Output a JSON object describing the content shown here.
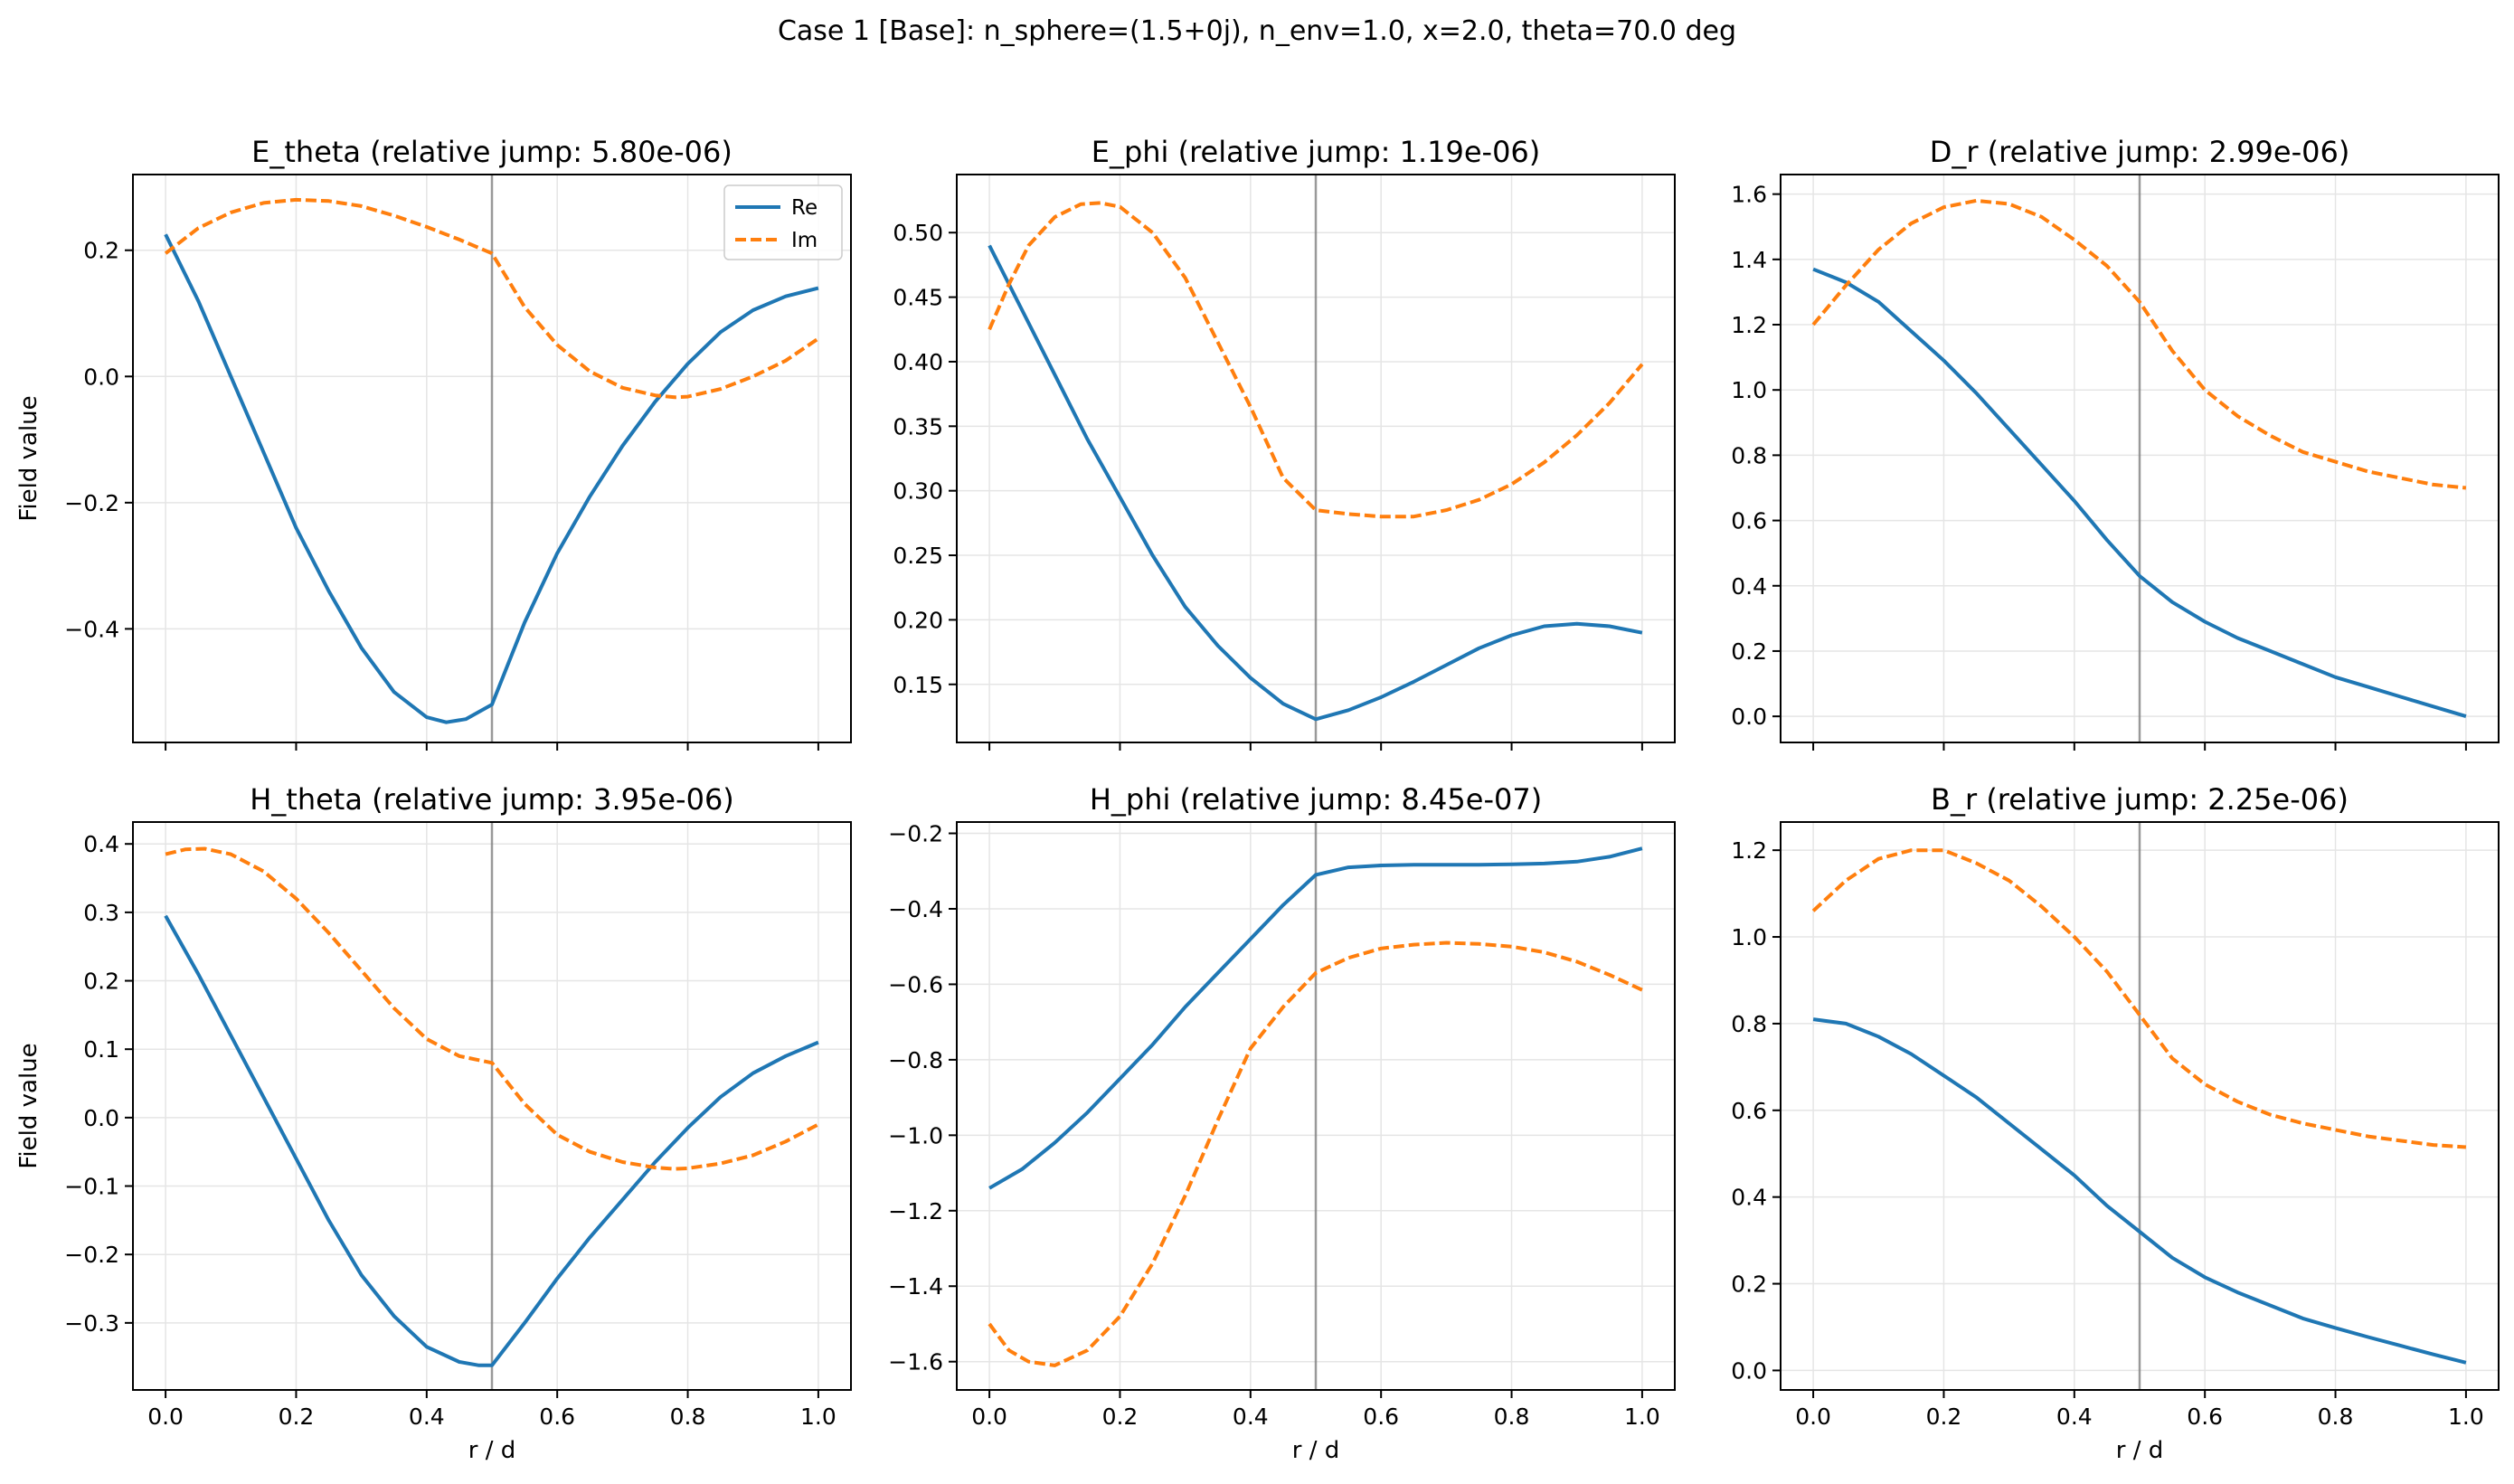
{
  "figure": {
    "suptitle": "Case 1 [Base]: n_sphere=(1.5+0j), n_env=1.0, x=2.0, theta=70.0 deg"
  },
  "legend": {
    "re_label": "Re",
    "im_label": "Im"
  },
  "colors": {
    "re": "#1f77b4",
    "im": "#ff7f0e",
    "interface": "#808080",
    "grid": "#e5e5e5",
    "axes": "#000000"
  },
  "chart_data": [
    {
      "type": "line",
      "title": "E_theta (relative jump: 5.80e-06)",
      "xlabel": "",
      "ylabel": "Field value",
      "xlim": [
        -0.05,
        1.05
      ],
      "ylim": [
        -0.58,
        0.32
      ],
      "xticks": [
        0.0,
        0.2,
        0.4,
        0.6,
        0.8,
        1.0
      ],
      "show_xticklabels": false,
      "yticks": [
        -0.4,
        -0.2,
        0.0,
        0.2
      ],
      "ytick_labels": [
        "−0.4",
        "−0.2",
        "0.0",
        "0.2"
      ],
      "interface_x": 0.5,
      "legend": "upper right",
      "series": [
        {
          "name": "Re",
          "x": [
            0,
            0.05,
            0.1,
            0.15,
            0.2,
            0.25,
            0.3,
            0.35,
            0.4,
            0.43,
            0.46,
            0.5,
            0.55,
            0.6,
            0.65,
            0.7,
            0.75,
            0.8,
            0.85,
            0.9,
            0.95,
            1.0
          ],
          "y": [
            0.225,
            0.12,
            0.0,
            -0.12,
            -0.24,
            -0.34,
            -0.43,
            -0.5,
            -0.54,
            -0.548,
            -0.543,
            -0.52,
            -0.39,
            -0.28,
            -0.19,
            -0.11,
            -0.04,
            0.02,
            0.07,
            0.105,
            0.127,
            0.14
          ]
        },
        {
          "name": "Im",
          "x": [
            0,
            0.05,
            0.1,
            0.15,
            0.2,
            0.25,
            0.3,
            0.35,
            0.4,
            0.45,
            0.5,
            0.55,
            0.6,
            0.65,
            0.7,
            0.75,
            0.78,
            0.8,
            0.85,
            0.9,
            0.95,
            1.0
          ],
          "y": [
            0.195,
            0.235,
            0.26,
            0.275,
            0.28,
            0.278,
            0.27,
            0.255,
            0.237,
            0.217,
            0.195,
            0.11,
            0.05,
            0.008,
            -0.018,
            -0.03,
            -0.033,
            -0.032,
            -0.02,
            0.0,
            0.025,
            0.06
          ]
        }
      ]
    },
    {
      "type": "line",
      "title": "E_phi (relative jump: 1.19e-06)",
      "xlabel": "",
      "ylabel": "",
      "xlim": [
        -0.05,
        1.05
      ],
      "ylim": [
        0.105,
        0.545
      ],
      "xticks": [
        0.0,
        0.2,
        0.4,
        0.6,
        0.8,
        1.0
      ],
      "show_xticklabels": false,
      "yticks": [
        0.15,
        0.2,
        0.25,
        0.3,
        0.35,
        0.4,
        0.45,
        0.5
      ],
      "ytick_labels": [
        "0.15",
        "0.20",
        "0.25",
        "0.30",
        "0.35",
        "0.40",
        "0.45",
        "0.50"
      ],
      "interface_x": 0.5,
      "series": [
        {
          "name": "Re",
          "x": [
            0,
            0.05,
            0.1,
            0.15,
            0.2,
            0.25,
            0.3,
            0.35,
            0.4,
            0.45,
            0.5,
            0.55,
            0.6,
            0.65,
            0.7,
            0.75,
            0.8,
            0.85,
            0.9,
            0.95,
            1.0
          ],
          "y": [
            0.49,
            0.44,
            0.39,
            0.34,
            0.295,
            0.25,
            0.21,
            0.18,
            0.155,
            0.135,
            0.123,
            0.13,
            0.14,
            0.152,
            0.165,
            0.178,
            0.188,
            0.195,
            0.197,
            0.195,
            0.19
          ]
        },
        {
          "name": "Im",
          "x": [
            0,
            0.03,
            0.06,
            0.1,
            0.14,
            0.17,
            0.2,
            0.25,
            0.3,
            0.35,
            0.4,
            0.45,
            0.5,
            0.55,
            0.6,
            0.65,
            0.7,
            0.75,
            0.8,
            0.85,
            0.9,
            0.95,
            1.0
          ],
          "y": [
            0.425,
            0.46,
            0.49,
            0.512,
            0.522,
            0.523,
            0.52,
            0.5,
            0.465,
            0.415,
            0.365,
            0.31,
            0.285,
            0.282,
            0.28,
            0.28,
            0.285,
            0.293,
            0.305,
            0.322,
            0.343,
            0.368,
            0.398
          ]
        }
      ]
    },
    {
      "type": "line",
      "title": "D_r (relative jump: 2.99e-06)",
      "xlabel": "",
      "ylabel": "",
      "xlim": [
        -0.05,
        1.05
      ],
      "ylim": [
        -0.08,
        1.66
      ],
      "xticks": [
        0.0,
        0.2,
        0.4,
        0.6,
        0.8,
        1.0
      ],
      "show_xticklabels": false,
      "yticks": [
        0.0,
        0.2,
        0.4,
        0.6,
        0.8,
        1.0,
        1.2,
        1.4,
        1.6
      ],
      "ytick_labels": [
        "0.0",
        "0.2",
        "0.4",
        "0.6",
        "0.8",
        "1.0",
        "1.2",
        "1.4",
        "1.6"
      ],
      "interface_x": 0.5,
      "series": [
        {
          "name": "Re",
          "x": [
            0,
            0.05,
            0.1,
            0.15,
            0.2,
            0.25,
            0.3,
            0.35,
            0.4,
            0.45,
            0.5,
            0.55,
            0.6,
            0.65,
            0.7,
            0.75,
            0.8,
            0.85,
            0.9,
            0.95,
            1.0
          ],
          "y": [
            1.37,
            1.33,
            1.27,
            1.18,
            1.09,
            0.99,
            0.88,
            0.77,
            0.66,
            0.54,
            0.43,
            0.35,
            0.29,
            0.24,
            0.2,
            0.16,
            0.12,
            0.09,
            0.06,
            0.03,
            0.0
          ]
        },
        {
          "name": "Im",
          "x": [
            0,
            0.05,
            0.1,
            0.15,
            0.2,
            0.25,
            0.3,
            0.35,
            0.4,
            0.45,
            0.5,
            0.55,
            0.6,
            0.65,
            0.7,
            0.75,
            0.8,
            0.85,
            0.9,
            0.95,
            1.0
          ],
          "y": [
            1.2,
            1.32,
            1.43,
            1.51,
            1.56,
            1.58,
            1.57,
            1.53,
            1.46,
            1.38,
            1.27,
            1.12,
            1.0,
            0.92,
            0.86,
            0.81,
            0.78,
            0.75,
            0.73,
            0.71,
            0.7
          ]
        }
      ]
    },
    {
      "type": "line",
      "title": "H_theta (relative jump: 3.95e-06)",
      "xlabel": "r / d",
      "ylabel": "Field value",
      "xlim": [
        -0.05,
        1.05
      ],
      "ylim": [
        -0.398,
        0.432
      ],
      "xticks": [
        0.0,
        0.2,
        0.4,
        0.6,
        0.8,
        1.0
      ],
      "show_xticklabels": true,
      "xtick_labels": [
        "0.0",
        "0.2",
        "0.4",
        "0.6",
        "0.8",
        "1.0"
      ],
      "yticks": [
        -0.3,
        -0.2,
        -0.1,
        0.0,
        0.1,
        0.2,
        0.3,
        0.4
      ],
      "ytick_labels": [
        "−0.3",
        "−0.2",
        "−0.1",
        "0.0",
        "0.1",
        "0.2",
        "0.3",
        "0.4"
      ],
      "interface_x": 0.5,
      "series": [
        {
          "name": "Re",
          "x": [
            0,
            0.05,
            0.1,
            0.15,
            0.2,
            0.25,
            0.3,
            0.35,
            0.4,
            0.45,
            0.48,
            0.5,
            0.55,
            0.6,
            0.65,
            0.7,
            0.75,
            0.8,
            0.85,
            0.9,
            0.95,
            1.0
          ],
          "y": [
            0.295,
            0.21,
            0.12,
            0.03,
            -0.06,
            -0.15,
            -0.23,
            -0.29,
            -0.335,
            -0.357,
            -0.362,
            -0.362,
            -0.3,
            -0.235,
            -0.175,
            -0.12,
            -0.065,
            -0.015,
            0.03,
            0.065,
            0.09,
            0.11
          ]
        },
        {
          "name": "Im",
          "x": [
            0,
            0.03,
            0.06,
            0.1,
            0.15,
            0.2,
            0.25,
            0.3,
            0.35,
            0.4,
            0.45,
            0.5,
            0.55,
            0.6,
            0.65,
            0.7,
            0.75,
            0.78,
            0.8,
            0.85,
            0.9,
            0.95,
            1.0
          ],
          "y": [
            0.385,
            0.392,
            0.393,
            0.385,
            0.36,
            0.32,
            0.27,
            0.215,
            0.16,
            0.115,
            0.09,
            0.08,
            0.02,
            -0.025,
            -0.05,
            -0.065,
            -0.073,
            -0.075,
            -0.074,
            -0.067,
            -0.055,
            -0.035,
            -0.01
          ]
        }
      ]
    },
    {
      "type": "line",
      "title": "H_phi (relative jump: 8.45e-07)",
      "xlabel": "r / d",
      "ylabel": "",
      "xlim": [
        -0.05,
        1.05
      ],
      "ylim": [
        -1.675,
        -0.17
      ],
      "xticks": [
        0.0,
        0.2,
        0.4,
        0.6,
        0.8,
        1.0
      ],
      "show_xticklabels": true,
      "xtick_labels": [
        "0.0",
        "0.2",
        "0.4",
        "0.6",
        "0.8",
        "1.0"
      ],
      "yticks": [
        -1.6,
        -1.4,
        -1.2,
        -1.0,
        -0.8,
        -0.6,
        -0.4,
        -0.2
      ],
      "ytick_labels": [
        "−1.6",
        "−1.4",
        "−1.2",
        "−1.0",
        "−0.8",
        "−0.6",
        "−0.4",
        "−0.2"
      ],
      "interface_x": 0.5,
      "series": [
        {
          "name": "Re",
          "x": [
            0,
            0.05,
            0.1,
            0.15,
            0.2,
            0.25,
            0.3,
            0.35,
            0.4,
            0.45,
            0.5,
            0.55,
            0.6,
            0.65,
            0.7,
            0.75,
            0.8,
            0.85,
            0.9,
            0.95,
            1.0
          ],
          "y": [
            -1.14,
            -1.09,
            -1.02,
            -0.94,
            -0.85,
            -0.76,
            -0.66,
            -0.57,
            -0.48,
            -0.39,
            -0.31,
            -0.29,
            -0.285,
            -0.283,
            -0.283,
            -0.283,
            -0.282,
            -0.28,
            -0.275,
            -0.262,
            -0.24
          ]
        },
        {
          "name": "Im",
          "x": [
            0,
            0.03,
            0.06,
            0.1,
            0.15,
            0.2,
            0.25,
            0.3,
            0.35,
            0.4,
            0.45,
            0.5,
            0.55,
            0.6,
            0.65,
            0.7,
            0.75,
            0.8,
            0.85,
            0.9,
            0.95,
            1.0
          ],
          "y": [
            -1.5,
            -1.57,
            -1.6,
            -1.61,
            -1.57,
            -1.48,
            -1.34,
            -1.16,
            -0.96,
            -0.77,
            -0.66,
            -0.57,
            -0.53,
            -0.505,
            -0.495,
            -0.49,
            -0.493,
            -0.5,
            -0.515,
            -0.54,
            -0.575,
            -0.615
          ]
        }
      ]
    },
    {
      "type": "line",
      "title": "B_r (relative jump: 2.25e-06)",
      "xlabel": "r / d",
      "ylabel": "",
      "xlim": [
        -0.05,
        1.05
      ],
      "ylim": [
        -0.045,
        1.265
      ],
      "xticks": [
        0.0,
        0.2,
        0.4,
        0.6,
        0.8,
        1.0
      ],
      "show_xticklabels": true,
      "xtick_labels": [
        "0.0",
        "0.2",
        "0.4",
        "0.6",
        "0.8",
        "1.0"
      ],
      "yticks": [
        0.0,
        0.2,
        0.4,
        0.6,
        0.8,
        1.0,
        1.2
      ],
      "ytick_labels": [
        "0.0",
        "0.2",
        "0.4",
        "0.6",
        "0.8",
        "1.0",
        "1.2"
      ],
      "interface_x": 0.5,
      "series": [
        {
          "name": "Re",
          "x": [
            0,
            0.05,
            0.1,
            0.15,
            0.2,
            0.25,
            0.3,
            0.35,
            0.4,
            0.45,
            0.5,
            0.55,
            0.6,
            0.65,
            0.7,
            0.75,
            0.8,
            0.85,
            0.9,
            0.95,
            1.0
          ],
          "y": [
            0.81,
            0.8,
            0.77,
            0.73,
            0.68,
            0.63,
            0.57,
            0.51,
            0.45,
            0.38,
            0.32,
            0.26,
            0.215,
            0.18,
            0.15,
            0.12,
            0.098,
            0.077,
            0.057,
            0.037,
            0.018
          ]
        },
        {
          "name": "Im",
          "x": [
            0,
            0.05,
            0.1,
            0.15,
            0.2,
            0.25,
            0.3,
            0.35,
            0.4,
            0.45,
            0.5,
            0.55,
            0.6,
            0.65,
            0.7,
            0.75,
            0.8,
            0.85,
            0.9,
            0.95,
            1.0
          ],
          "y": [
            1.06,
            1.13,
            1.18,
            1.2,
            1.2,
            1.17,
            1.13,
            1.07,
            1.0,
            0.92,
            0.82,
            0.72,
            0.66,
            0.62,
            0.59,
            0.57,
            0.555,
            0.54,
            0.53,
            0.52,
            0.515
          ]
        }
      ]
    }
  ]
}
